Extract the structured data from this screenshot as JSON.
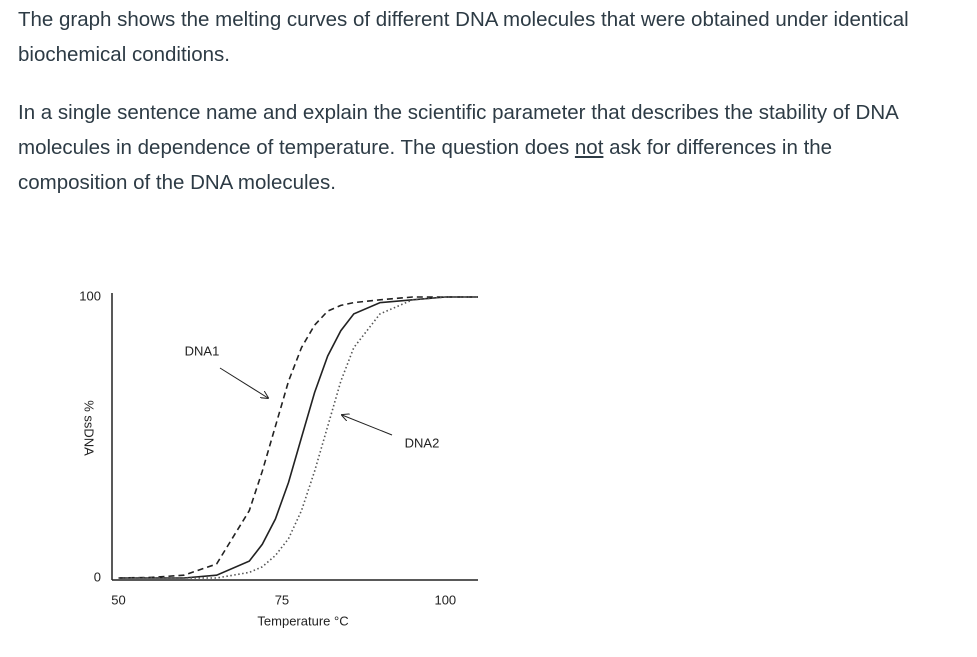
{
  "question": {
    "intro": "The graph shows the melting curves of different DNA molecules that were obtained under identical biochemical conditions.",
    "task_before": "In a single sentence name and explain the scientific parameter that describes the stability of DNA molecules in dependence of temperature. The question does ",
    "task_emphasis": "not",
    "task_after": " ask for differences in the composition of the DNA molecules."
  },
  "chart_data": {
    "type": "line",
    "x_label": "Temperature °C",
    "y_label": "% ssDNA",
    "x": [
      50,
      55,
      60,
      65,
      70,
      72,
      74,
      76,
      78,
      80,
      82,
      84,
      86,
      90,
      95,
      100,
      105
    ],
    "series": [
      {
        "color": "#222222",
        "dash": "dashed",
        "values": [
          0,
          0.2,
          1,
          5,
          24,
          38,
          54,
          70,
          82,
          90,
          95,
          97,
          98,
          99,
          100,
          100,
          100
        ]
      },
      {
        "color": "#222222",
        "dash": "solid",
        "values": [
          0,
          0,
          0,
          1,
          6,
          12,
          21,
          34,
          50,
          66,
          79,
          88,
          94,
          98,
          99,
          100,
          100
        ]
      },
      {
        "color": "#555555",
        "dash": "dotted",
        "values": [
          0,
          0,
          0,
          0,
          2,
          4,
          8,
          14,
          24,
          38,
          54,
          70,
          82,
          94,
          99,
          100,
          100
        ]
      }
    ],
    "annotations": [
      "DNA1",
      "DNA2"
    ],
    "xlim": [
      49,
      105
    ],
    "ylim": [
      0,
      100
    ],
    "xticks": [
      50,
      75,
      100
    ],
    "yticks": [
      0,
      100
    ]
  }
}
